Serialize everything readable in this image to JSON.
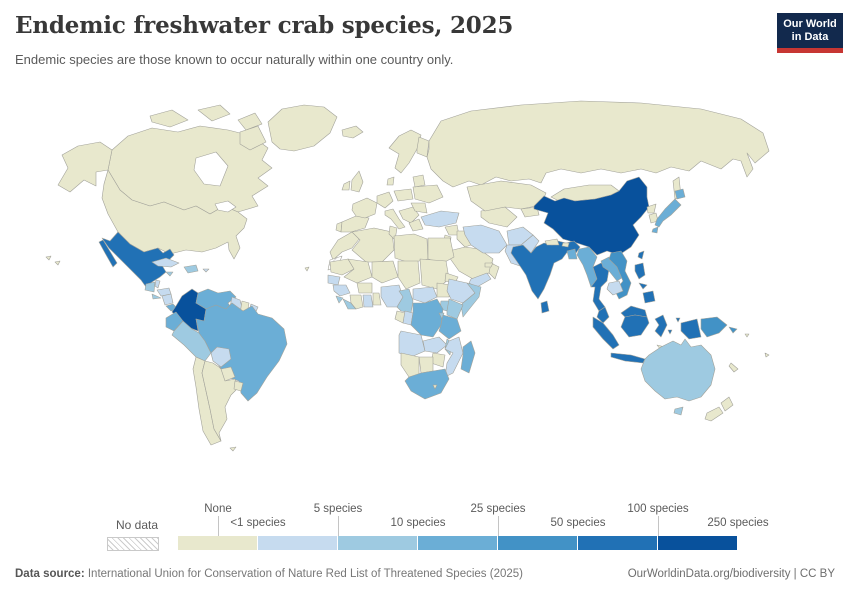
{
  "header": {
    "title": "Endemic freshwater crab species, 2025",
    "subtitle": "Endemic species are those known to occur naturally within one country only.",
    "logo": {
      "line1": "Our World",
      "line2": "in Data",
      "bg_color": "#12294d",
      "accent_color": "#c73633"
    }
  },
  "legend": {
    "no_data_label": "No data",
    "labels_top": [
      "None",
      "5 species",
      "25 species",
      "100 species"
    ],
    "labels_bottom": [
      "<1 species",
      "10 species",
      "50 species",
      "250 species"
    ]
  },
  "footer": {
    "source_label": "Data source:",
    "source_text": " International Union for Conservation of Nature Red List of Threatened Species (2025)",
    "link_text": "OurWorldinData.org/biodiversity | CC BY"
  },
  "chart_data": {
    "type": "choropleth_map",
    "title": "Endemic freshwater crab species, 2025",
    "year": 2025,
    "unit": "endemic freshwater crab species",
    "legend_boundary_labels": [
      "None",
      "<1 species",
      "5 species",
      "10 species",
      "25 species",
      "50 species",
      "100 species",
      "250 species"
    ],
    "bin_ranges": [
      "None",
      "<1-5",
      "5-10",
      "10-25",
      "25-50",
      "50-100",
      "100-250"
    ],
    "colors": [
      "#e8e8cd",
      "#c6dbef",
      "#9ecae1",
      "#6baed6",
      "#4292c6",
      "#2171b5",
      "#08519c"
    ],
    "no_data_style": "hatched",
    "countries": {
      "United States": 0,
      "Canada": 0,
      "Greenland": 0,
      "Mexico": 5,
      "Guatemala": 2,
      "Belize": 1,
      "Honduras": 1,
      "El Salvador": 2,
      "Nicaragua": 1,
      "Costa Rica": 3,
      "Panama": 3,
      "Cuba": 1,
      "Jamaica": 2,
      "Hispaniola": 2,
      "Puerto Rico": 1,
      "Colombia": 6,
      "Venezuela": 3,
      "Guyana": 1,
      "Suriname": 0,
      "French Guiana": 1,
      "Ecuador": 3,
      "Peru": 2,
      "Brazil": 3,
      "Bolivia": 1,
      "Paraguay": 0,
      "Chile": 0,
      "Argentina": 0,
      "Uruguay": 0,
      "Falkland Islands": 0,
      "Cape Verde": 0,
      "Iceland": 0,
      "Ireland": 0,
      "United Kingdom": 0,
      "Portugal": 0,
      "Spain": 0,
      "France": 0,
      "Germany": 0,
      "Italy": 0,
      "Scandinavia": 0,
      "Finland": 0,
      "Denmark": 0,
      "Poland": 0,
      "Ukraine": 0,
      "Balkans": 0,
      "Greece": 0,
      "Romania": 0,
      "Baltics": 0,
      "Russia": 0,
      "Turkey": 1,
      "Morocco": 0,
      "Western Sahara": "no_data",
      "Algeria": 0,
      "Tunisia": 0,
      "Libya": 0,
      "Egypt": 0,
      "Mauritania": 0,
      "Mali": 0,
      "Niger": 0,
      "Chad": 0,
      "Sudan": 0,
      "Eritrea": 0,
      "Senegal": 1,
      "Guinea": 1,
      "Sierra Leone": 2,
      "Liberia": 2,
      "Cote d'Ivoire": 0,
      "Ghana": 1,
      "Togo and Benin": 0,
      "Burkina Faso": 0,
      "Nigeria": 1,
      "Cameroon": 2,
      "Central African Republic": 1,
      "South Sudan": 0,
      "Ethiopia": 1,
      "Somalia": 2,
      "Uganda": 2,
      "Kenya": 2,
      "Gabon": 0,
      "Congo": 1,
      "Democratic Republic of Congo": 3,
      "Rwanda and Burundi": 2,
      "Tanzania": 3,
      "Angola": 1,
      "Zambia": 1,
      "Malawi": 2,
      "Mozambique": 1,
      "Zimbabwe": 0,
      "Botswana": 0,
      "Namibia": 0,
      "South Africa": 3,
      "Lesotho": 0,
      "Madagascar": 3,
      "Syria": 0,
      "Iraq": 0,
      "Jordan and Israel": 0,
      "Saudi Arabia": 0,
      "Yemen": 1,
      "Oman": 0,
      "United Arab Emirates": 0,
      "Iran": 1,
      "Afghanistan": 1,
      "Pakistan": 1,
      "Turkmenistan and Uzbekistan": 0,
      "Kazakhstan": 0,
      "Kyrgyzstan and Tajikistan": 0,
      "Mongolia": 0,
      "China": 6,
      "North Korea": 0,
      "South Korea": 0,
      "Japan": 3,
      "Taiwan": 5,
      "India": 5,
      "Nepal": 0,
      "Bhutan": 0,
      "Bangladesh": 3,
      "Sri Lanka": 5,
      "Myanmar": 3,
      "Thailand": 5,
      "Laos": 3,
      "Vietnam": 4,
      "Cambodia": 1,
      "Malaysia": 5,
      "Indonesia": 5,
      "Philippines": 5,
      "Papua New Guinea": 4,
      "Timor": 0,
      "Solomon Islands": 0,
      "Australia": 2,
      "New Zealand": 0,
      "New Caledonia": 0,
      "Fiji": 0
    }
  }
}
